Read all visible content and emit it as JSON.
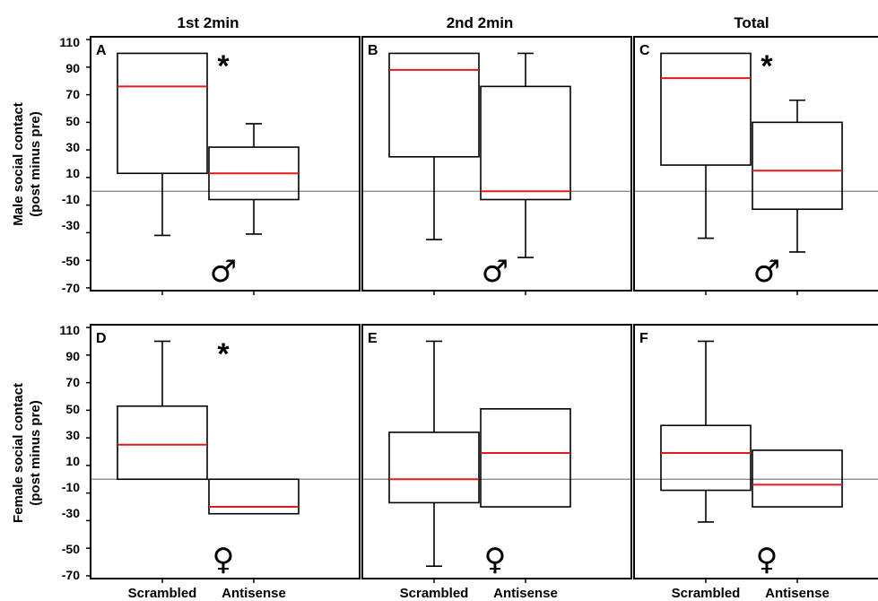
{
  "chart_data": {
    "type": "box",
    "columns": [
      "1st 2min",
      "2nd 2min",
      "Total"
    ],
    "rows": [
      {
        "ylabel_line1": "Male social contact",
        "ylabel_line2": "(post minus pre)"
      },
      {
        "ylabel_line1": "Female social contact",
        "ylabel_line2": "(post minus pre)"
      }
    ],
    "yticks": [
      "110",
      "90",
      "70",
      "50",
      "30",
      "10",
      "-10",
      "-30",
      "-50",
      "-70"
    ],
    "ytick_values": [
      110,
      90,
      70,
      50,
      30,
      10,
      -10,
      -30,
      -50,
      -70
    ],
    "ylim": [
      -72,
      112
    ],
    "reference_line": 0,
    "categories": [
      "Scrambled",
      "Antisense"
    ],
    "colors": {
      "median": "#e31a1c",
      "box": "#000000",
      "reference": "#808080"
    },
    "panels": [
      {
        "label": "A",
        "star": "*",
        "sex_symbol": "♂",
        "boxes": [
          {
            "category": "Scrambled",
            "whisker_low": -32,
            "q1": 13,
            "median": 76,
            "q3": 100,
            "whisker_high": 100
          },
          {
            "category": "Antisense",
            "whisker_low": -31,
            "q1": -6,
            "median": 13,
            "q3": 32,
            "whisker_high": 49
          }
        ]
      },
      {
        "label": "B",
        "star": "",
        "sex_symbol": "♂",
        "boxes": [
          {
            "category": "Scrambled",
            "whisker_low": -35,
            "q1": 25,
            "median": 88,
            "q3": 100,
            "whisker_high": 100
          },
          {
            "category": "Antisense",
            "whisker_low": -48,
            "q1": -6,
            "median": 0,
            "q3": 76,
            "whisker_high": 100
          }
        ]
      },
      {
        "label": "C",
        "star": "*",
        "sex_symbol": "♂",
        "boxes": [
          {
            "category": "Scrambled",
            "whisker_low": -34,
            "q1": 19,
            "median": 82,
            "q3": 100,
            "whisker_high": 100
          },
          {
            "category": "Antisense",
            "whisker_low": -44,
            "q1": -13,
            "median": 15,
            "q3": 50,
            "whisker_high": 66
          }
        ]
      },
      {
        "label": "D",
        "star": "*",
        "sex_symbol": "♀",
        "boxes": [
          {
            "category": "Scrambled",
            "whisker_low": 0,
            "q1": 0,
            "median": 25,
            "q3": 53,
            "whisker_high": 100
          },
          {
            "category": "Antisense",
            "whisker_low": -25,
            "q1": -25,
            "median": -20,
            "q3": 0,
            "whisker_high": 0
          }
        ]
      },
      {
        "label": "E",
        "star": "",
        "sex_symbol": "♀",
        "boxes": [
          {
            "category": "Scrambled",
            "whisker_low": -63,
            "q1": -17,
            "median": 0,
            "q3": 34,
            "whisker_high": 100
          },
          {
            "category": "Antisense",
            "whisker_low": -20,
            "q1": -20,
            "median": 19,
            "q3": 51,
            "whisker_high": 51
          }
        ]
      },
      {
        "label": "F",
        "star": "",
        "sex_symbol": "♀",
        "boxes": [
          {
            "category": "Scrambled",
            "whisker_low": -31,
            "q1": -8,
            "median": 19,
            "q3": 39,
            "whisker_high": 100
          },
          {
            "category": "Antisense",
            "whisker_low": -20,
            "q1": -20,
            "median": -4,
            "q3": 21,
            "whisker_high": 21
          }
        ]
      }
    ]
  }
}
